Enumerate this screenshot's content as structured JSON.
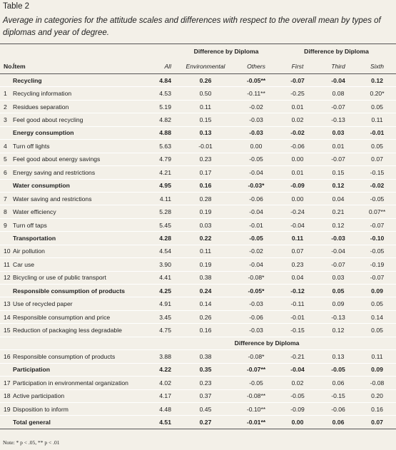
{
  "header": {
    "title": "Table 2",
    "caption": "Average in categories for the attitude scales and differences with respect to the overall mean by types of diplomas and year of degree."
  },
  "table": {
    "group_headers": [
      "Difference by Diploma",
      "Difference by Diploma"
    ],
    "columns": [
      "No.",
      "Ítem",
      "All",
      "Environmental",
      "Others",
      "First",
      "Third",
      "Sixth"
    ],
    "rows": [
      {
        "item": "Recycling",
        "values": [
          "4.84",
          "0.26",
          "-0.05**",
          "-0.07",
          "-0.04",
          "0.12"
        ]
      },
      {
        "no": "1",
        "item": "Recycling information",
        "values": [
          "4.53",
          "0.50",
          "-0.11**",
          "-0.25",
          "0.08",
          "0.20*"
        ]
      },
      {
        "no": "2",
        "item": "Residues separation",
        "values": [
          "5.19",
          "0.11",
          "-0.02",
          "0.01",
          "-0.07",
          "0.05"
        ]
      },
      {
        "no": "3",
        "item": "Feel good about recycling",
        "values": [
          "4.82",
          "0.15",
          "-0.03",
          "0.02",
          "-0.13",
          "0.11"
        ]
      },
      {
        "item": "Energy consumption",
        "values": [
          "4.88",
          "0.13",
          "-0.03",
          "-0.02",
          "0.03",
          "-0.01"
        ]
      },
      {
        "no": "4",
        "item": "Turn off lights",
        "values": [
          "5.63",
          "-0.01",
          "0.00",
          "-0.06",
          "0.01",
          "0.05"
        ]
      },
      {
        "no": "5",
        "item": "Feel good about energy savings",
        "values": [
          "4.79",
          "0.23",
          "-0.05",
          "0.00",
          "-0.07",
          "0.07"
        ]
      },
      {
        "no": "6",
        "item": "Energy saving and restrictions",
        "values": [
          "4.21",
          "0.17",
          "-0.04",
          "0.01",
          "0.15",
          "-0.15"
        ]
      },
      {
        "item": "Water consumption",
        "values": [
          "4.95",
          "0.16",
          "-0.03*",
          "-0.09",
          "0.12",
          "-0.02"
        ]
      },
      {
        "no": "7",
        "item": "Water saving and restrictions",
        "values": [
          "4.11",
          "0.28",
          "-0.06",
          "0.00",
          "0.04",
          "-0.05"
        ]
      },
      {
        "no": "8",
        "item": "Water efficiency",
        "values": [
          "5.28",
          "0.19",
          "-0.04",
          "-0.24",
          "0.21",
          "0.07**"
        ]
      },
      {
        "no": "9",
        "item": "Turn off taps",
        "values": [
          "5.45",
          "0.03",
          "-0.01",
          "-0.04",
          "0.12",
          "-0.07"
        ]
      },
      {
        "item": "Transportation",
        "values": [
          "4.28",
          "0.22",
          "-0.05",
          "0.11",
          "-0.03",
          "-0.10"
        ]
      },
      {
        "no": "10",
        "item": "Air pollution",
        "values": [
          "4.54",
          "0.11",
          "-0.02",
          "0.07",
          "-0.04",
          "-0.05"
        ]
      },
      {
        "no": "11",
        "item": "Car use",
        "values": [
          "3.90",
          "0.19",
          "-0.04",
          "0.23",
          "-0.07",
          "-0.19"
        ]
      },
      {
        "no": "12",
        "item": "Bicycling or use of public transport",
        "values": [
          "4.41",
          "0.38",
          "-0.08*",
          "0.04",
          "0.03",
          "-0.07"
        ]
      },
      {
        "item": "Responsible consumption of products",
        "values": [
          "4.25",
          "0.24",
          "-0.05*",
          "-0.12",
          "0.05",
          "0.09"
        ]
      },
      {
        "no": "13",
        "item": "Use of recycled paper",
        "values": [
          "4.91",
          "0.14",
          "-0.03",
          "-0.11",
          "0.09",
          "0.05"
        ]
      },
      {
        "no": "14",
        "item": "Responsible consumption and price",
        "values": [
          "3.45",
          "0.26",
          "-0.06",
          "-0.01",
          "-0.13",
          "0.14"
        ]
      },
      {
        "no": "15",
        "item": "Reduction of packaging less degradable",
        "values": [
          "4.75",
          "0.16",
          "-0.03",
          "-0.15",
          "0.12",
          "0.05"
        ]
      },
      {
        "group_header": "Difference by Diploma"
      },
      {
        "no": "16",
        "item": "Responsible consumption of products",
        "values": [
          "3.88",
          "0.38",
          "-0.08*",
          "-0.21",
          "0.13",
          "0.11"
        ]
      },
      {
        "item": "Participation",
        "values": [
          "4.22",
          "0.35",
          "-0.07**",
          "-0.04",
          "-0.05",
          "0.09"
        ]
      },
      {
        "no": "17",
        "item": "Participation in environmental organization",
        "values": [
          "4.02",
          "0.23",
          "-0.05",
          "0.02",
          "0.06",
          "-0.08"
        ]
      },
      {
        "no": "18",
        "item": "Active participation",
        "values": [
          "4.17",
          "0.37",
          "-0.08**",
          "-0.05",
          "-0.15",
          "0.20"
        ]
      },
      {
        "no": "19",
        "item": "Disposition to inform",
        "values": [
          "4.48",
          "0.45",
          "-0.10**",
          "-0.09",
          "-0.06",
          "0.16"
        ]
      },
      {
        "item": "Total general",
        "values": [
          "4.51",
          "0.27",
          "-0.01**",
          "0.00",
          "0.06",
          "0.07"
        ]
      }
    ]
  },
  "note": "Note: * p < .05, ** p < .01"
}
